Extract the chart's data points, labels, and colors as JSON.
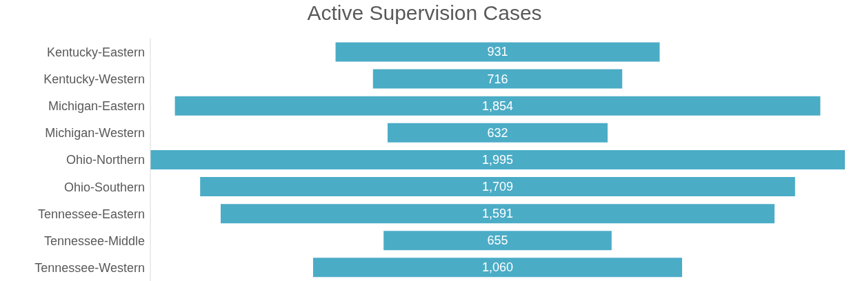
{
  "chart_data": {
    "type": "other",
    "title": "Active Supervision Cases",
    "categories": [
      "Kentucky-Eastern",
      "Kentucky-Western",
      "Michigan-Eastern",
      "Michigan-Western",
      "Ohio-Northern",
      "Ohio-Southern",
      "Tennessee-Eastern",
      "Tennessee-Middle",
      "Tennessee-Western"
    ],
    "values": [
      931,
      716,
      1854,
      632,
      1995,
      1709,
      1591,
      655,
      1060
    ],
    "value_labels": [
      "931",
      "716",
      "1,854",
      "632",
      "1,995",
      "1,709",
      "1,591",
      "655",
      "1,060"
    ],
    "color": "#4bacc6",
    "legend": false
  }
}
